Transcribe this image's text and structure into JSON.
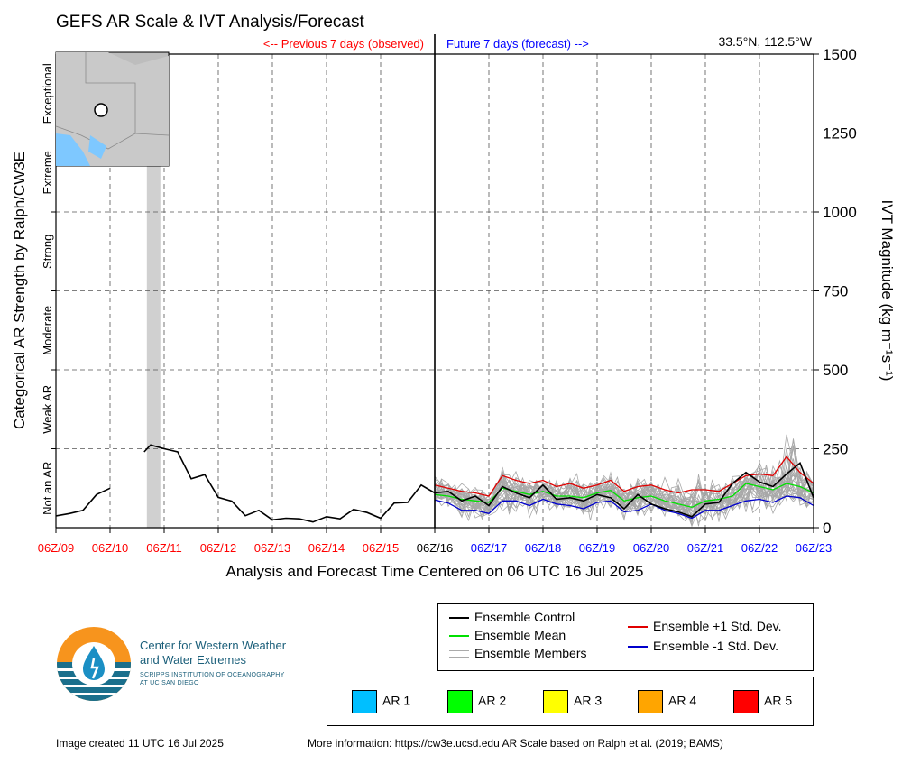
{
  "chart_data": {
    "type": "line",
    "title": "GEFS AR Scale & IVT Analysis/Forecast",
    "location": "33.5°N, 112.5°W",
    "previous_label": "<-- Previous 7 days (observed)",
    "future_label": "Future 7 days (forecast) -->",
    "xlabel": "Analysis and Forecast Time Centered on 06 UTC 16 Jul 2025",
    "ylabel_right": "IVT Magnitude (kg m⁻¹s⁻¹)",
    "ylabel_left": "Categorical AR Strength by Ralph/CW3E",
    "ylim": [
      0,
      1500
    ],
    "xlim_days": [
      0,
      14
    ],
    "y_ticks": [
      0,
      250,
      500,
      750,
      1000,
      1250,
      1500
    ],
    "x_ticks": [
      {
        "label": "06Z/09",
        "period": "observed"
      },
      {
        "label": "06Z/10",
        "period": "observed"
      },
      {
        "label": "06Z/11",
        "period": "observed"
      },
      {
        "label": "06Z/12",
        "period": "observed"
      },
      {
        "label": "06Z/13",
        "period": "observed"
      },
      {
        "label": "06Z/14",
        "period": "observed"
      },
      {
        "label": "06Z/15",
        "period": "observed"
      },
      {
        "label": "06Z/16",
        "period": "now"
      },
      {
        "label": "06Z/17",
        "period": "forecast"
      },
      {
        "label": "06Z/18",
        "period": "forecast"
      },
      {
        "label": "06Z/19",
        "period": "forecast"
      },
      {
        "label": "06Z/20",
        "period": "forecast"
      },
      {
        "label": "06Z/21",
        "period": "forecast"
      },
      {
        "label": "06Z/22",
        "period": "forecast"
      },
      {
        "label": "06Z/23",
        "period": "forecast"
      }
    ],
    "categories_left": [
      {
        "label": "Not an AR",
        "range": [
          0,
          250
        ]
      },
      {
        "label": "Weak AR",
        "range": [
          250,
          500
        ]
      },
      {
        "label": "Moderate",
        "range": [
          500,
          750
        ]
      },
      {
        "label": "Strong",
        "range": [
          750,
          1000
        ]
      },
      {
        "label": "Extreme",
        "range": [
          1000,
          1250
        ]
      },
      {
        "label": "Exceptional",
        "range": [
          1250,
          1500
        ]
      }
    ],
    "ar_shading": [
      {
        "start_day": 1.68,
        "end_day": 1.93,
        "color": "#d0d0d0"
      }
    ],
    "observed": [
      {
        "points": [
          [
            0,
            37
          ],
          [
            0.25,
            45
          ],
          [
            0.5,
            55
          ],
          [
            0.75,
            105
          ],
          [
            1.0,
            125
          ]
        ]
      },
      {
        "points": [
          [
            1.63,
            240
          ],
          [
            1.75,
            262
          ],
          [
            2.0,
            250
          ],
          [
            2.25,
            240
          ],
          [
            2.5,
            155
          ],
          [
            2.75,
            168
          ],
          [
            3.0,
            96
          ],
          [
            3.25,
            84
          ],
          [
            3.5,
            38
          ],
          [
            3.75,
            55
          ],
          [
            4.0,
            25
          ],
          [
            4.25,
            30
          ],
          [
            4.5,
            28
          ],
          [
            4.75,
            18
          ],
          [
            5.0,
            35
          ],
          [
            5.25,
            28
          ],
          [
            5.5,
            58
          ],
          [
            5.75,
            48
          ],
          [
            6.0,
            30
          ],
          [
            6.25,
            78
          ],
          [
            6.5,
            80
          ],
          [
            6.75,
            135
          ],
          [
            7.0,
            110
          ]
        ]
      }
    ],
    "series": [
      {
        "name": "Ensemble Control",
        "color": "#000000",
        "x": [
          7,
          7.25,
          7.5,
          7.75,
          8,
          8.25,
          8.5,
          8.75,
          9,
          9.25,
          9.5,
          9.75,
          10,
          10.25,
          10.5,
          10.75,
          11,
          11.25,
          11.5,
          11.75,
          12,
          12.25,
          12.5,
          12.75,
          13,
          13.25,
          13.5,
          13.75,
          14
        ],
        "values": [
          110,
          115,
          85,
          100,
          70,
          130,
          110,
          95,
          135,
          90,
          95,
          85,
          105,
          95,
          60,
          105,
          75,
          60,
          50,
          35,
          75,
          80,
          140,
          175,
          145,
          130,
          170,
          205,
          95
        ]
      },
      {
        "name": "Ensemble Mean",
        "color": "#00e000",
        "x": [
          7,
          7.25,
          7.5,
          7.75,
          8,
          8.25,
          8.5,
          8.75,
          9,
          9.25,
          9.5,
          9.75,
          10,
          10.25,
          10.5,
          10.75,
          11,
          11.25,
          11.5,
          11.75,
          12,
          12.25,
          12.5,
          12.75,
          13,
          13.25,
          13.5,
          13.75,
          14
        ],
        "values": [
          105,
          100,
          90,
          85,
          80,
          125,
          115,
          105,
          115,
          100,
          100,
          95,
          110,
          118,
          85,
          95,
          100,
          85,
          75,
          65,
          85,
          90,
          100,
          140,
          130,
          120,
          140,
          130,
          110
        ]
      },
      {
        "name": "Ensemble Members",
        "color": "#a8a8a8"
      },
      {
        "name": "Ensemble +1 Std. Dev.",
        "color": "#e00000",
        "x": [
          7,
          7.25,
          7.5,
          7.75,
          8,
          8.25,
          8.5,
          8.75,
          9,
          9.25,
          9.5,
          9.75,
          10,
          10.25,
          10.5,
          10.75,
          11,
          11.25,
          11.5,
          11.75,
          12,
          12.25,
          12.5,
          12.75,
          13,
          13.25,
          13.5,
          13.75,
          14
        ],
        "values": [
          135,
          125,
          115,
          110,
          100,
          165,
          150,
          140,
          150,
          130,
          140,
          125,
          135,
          150,
          115,
          130,
          135,
          120,
          110,
          120,
          120,
          115,
          140,
          165,
          170,
          165,
          225,
          175,
          140
        ]
      },
      {
        "name": "Ensemble -1 Std. Dev.",
        "color": "#0000cc",
        "x": [
          7,
          7.25,
          7.5,
          7.75,
          8,
          8.25,
          8.5,
          8.75,
          9,
          9.25,
          9.5,
          9.75,
          10,
          10.25,
          10.5,
          10.75,
          11,
          11.25,
          11.5,
          11.75,
          12,
          12.25,
          12.5,
          12.75,
          13,
          13.25,
          13.5,
          13.75,
          14
        ],
        "values": [
          88,
          78,
          55,
          55,
          45,
          85,
          85,
          70,
          90,
          75,
          70,
          60,
          80,
          85,
          50,
          55,
          75,
          55,
          45,
          30,
          55,
          55,
          70,
          85,
          90,
          80,
          100,
          95,
          70
        ]
      }
    ],
    "legend_placement": "bottom",
    "grid": true
  },
  "legend": {
    "items": [
      {
        "label": "Ensemble Control",
        "color": "#000000"
      },
      {
        "label": "Ensemble Mean",
        "color": "#00e000"
      },
      {
        "label": "Ensemble Members",
        "color": "#a8a8a8"
      },
      {
        "label": "Ensemble +1 Std. Dev.",
        "color": "#e00000"
      },
      {
        "label": "Ensemble -1 Std. Dev.",
        "color": "#0000cc"
      }
    ]
  },
  "ar_legend": [
    {
      "label": "AR 1",
      "color": "#00bfff"
    },
    {
      "label": "AR 2",
      "color": "#00ff00"
    },
    {
      "label": "AR 3",
      "color": "#ffff00"
    },
    {
      "label": "AR 4",
      "color": "#ffa500"
    },
    {
      "label": "AR 5",
      "color": "#ff0000"
    }
  ],
  "org": {
    "name_line1": "Center for Western Weather",
    "name_line2": "and Water Extremes",
    "sub_line1": "SCRIPPS INSTITUTION OF OCEANOGRAPHY",
    "sub_line2": "AT UC SAN DIEGO"
  },
  "footer": {
    "created": "Image created 11 UTC 16 Jul 2025",
    "more_info": "More information: https://cw3e.ucsd.edu AR Scale based on Ralph et al. (2019; BAMS)"
  },
  "colors": {
    "observed_label": "#ff0000",
    "forecast_label": "#0000ff"
  },
  "inset_map": {
    "icon": "location-map-icon"
  }
}
